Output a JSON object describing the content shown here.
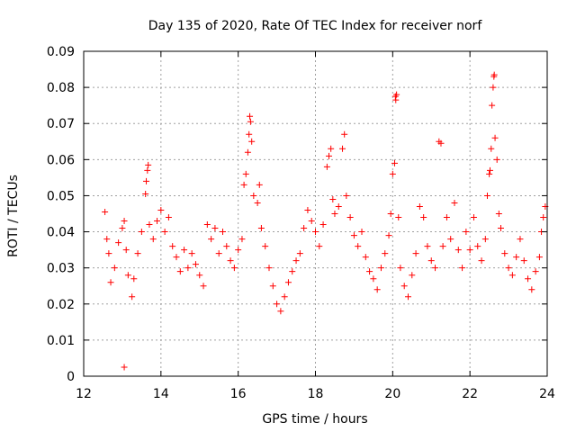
{
  "chart_data": {
    "type": "scatter",
    "title": "Day 135 of 2020, Rate Of TEC Index for receiver norf",
    "xlabel": "GPS time / hours",
    "ylabel": "ROTI / TECUs",
    "xlim": [
      12,
      24
    ],
    "ylim": [
      0,
      0.09
    ],
    "x_ticks": [
      "12",
      "14",
      "16",
      "18",
      "20",
      "22",
      "24"
    ],
    "y_ticks": [
      "0",
      "0.01",
      "0.02",
      "0.03",
      "0.04",
      "0.05",
      "0.06",
      "0.07",
      "0.08",
      "0.09"
    ],
    "grid": true,
    "marker": "plus",
    "color": "#ff0000",
    "series": [
      {
        "points": [
          [
            12.55,
            0.0455
          ],
          [
            12.6,
            0.038
          ],
          [
            12.65,
            0.034
          ],
          [
            12.7,
            0.026
          ],
          [
            12.8,
            0.03
          ],
          [
            12.9,
            0.037
          ],
          [
            13.0,
            0.041
          ],
          [
            13.05,
            0.043
          ],
          [
            13.1,
            0.035
          ],
          [
            13.15,
            0.028
          ],
          [
            13.05,
            0.0025
          ],
          [
            13.25,
            0.022
          ],
          [
            13.3,
            0.027
          ],
          [
            13.4,
            0.034
          ],
          [
            13.5,
            0.04
          ],
          [
            13.6,
            0.0505
          ],
          [
            13.62,
            0.054
          ],
          [
            13.65,
            0.057
          ],
          [
            13.67,
            0.0585
          ],
          [
            13.7,
            0.042
          ],
          [
            13.8,
            0.038
          ],
          [
            13.9,
            0.043
          ],
          [
            14.0,
            0.046
          ],
          [
            14.1,
            0.04
          ],
          [
            14.2,
            0.044
          ],
          [
            14.3,
            0.036
          ],
          [
            14.4,
            0.033
          ],
          [
            14.5,
            0.029
          ],
          [
            14.6,
            0.035
          ],
          [
            14.7,
            0.03
          ],
          [
            14.8,
            0.034
          ],
          [
            14.9,
            0.031
          ],
          [
            15.0,
            0.028
          ],
          [
            15.1,
            0.025
          ],
          [
            15.2,
            0.042
          ],
          [
            15.3,
            0.038
          ],
          [
            15.4,
            0.041
          ],
          [
            15.5,
            0.034
          ],
          [
            15.6,
            0.04
          ],
          [
            15.7,
            0.036
          ],
          [
            15.8,
            0.032
          ],
          [
            15.9,
            0.03
          ],
          [
            16.0,
            0.035
          ],
          [
            16.1,
            0.038
          ],
          [
            16.15,
            0.053
          ],
          [
            16.2,
            0.056
          ],
          [
            16.25,
            0.062
          ],
          [
            16.28,
            0.067
          ],
          [
            16.3,
            0.072
          ],
          [
            16.32,
            0.0705
          ],
          [
            16.35,
            0.065
          ],
          [
            16.4,
            0.05
          ],
          [
            16.5,
            0.048
          ],
          [
            16.55,
            0.053
          ],
          [
            16.6,
            0.041
          ],
          [
            16.7,
            0.036
          ],
          [
            16.8,
            0.03
          ],
          [
            16.9,
            0.025
          ],
          [
            17.0,
            0.02
          ],
          [
            17.1,
            0.018
          ],
          [
            17.2,
            0.022
          ],
          [
            17.3,
            0.026
          ],
          [
            17.4,
            0.029
          ],
          [
            17.5,
            0.032
          ],
          [
            17.6,
            0.034
          ],
          [
            17.7,
            0.041
          ],
          [
            17.8,
            0.046
          ],
          [
            17.9,
            0.043
          ],
          [
            18.0,
            0.04
          ],
          [
            18.1,
            0.036
          ],
          [
            18.2,
            0.042
          ],
          [
            18.3,
            0.058
          ],
          [
            18.35,
            0.061
          ],
          [
            18.4,
            0.063
          ],
          [
            18.45,
            0.049
          ],
          [
            18.5,
            0.045
          ],
          [
            18.6,
            0.047
          ],
          [
            18.7,
            0.063
          ],
          [
            18.75,
            0.067
          ],
          [
            18.8,
            0.05
          ],
          [
            18.9,
            0.044
          ],
          [
            19.0,
            0.039
          ],
          [
            19.1,
            0.036
          ],
          [
            19.2,
            0.04
          ],
          [
            19.3,
            0.033
          ],
          [
            19.4,
            0.029
          ],
          [
            19.5,
            0.027
          ],
          [
            19.6,
            0.024
          ],
          [
            19.7,
            0.03
          ],
          [
            19.8,
            0.034
          ],
          [
            19.9,
            0.039
          ],
          [
            19.95,
            0.045
          ],
          [
            20.0,
            0.056
          ],
          [
            20.05,
            0.059
          ],
          [
            20.07,
            0.0775
          ],
          [
            20.08,
            0.0765
          ],
          [
            20.1,
            0.078
          ],
          [
            20.15,
            0.044
          ],
          [
            20.2,
            0.03
          ],
          [
            20.3,
            0.025
          ],
          [
            20.4,
            0.022
          ],
          [
            20.5,
            0.028
          ],
          [
            20.6,
            0.034
          ],
          [
            20.7,
            0.047
          ],
          [
            20.8,
            0.044
          ],
          [
            20.9,
            0.036
          ],
          [
            21.0,
            0.032
          ],
          [
            21.1,
            0.03
          ],
          [
            21.2,
            0.065
          ],
          [
            21.25,
            0.0645
          ],
          [
            21.3,
            0.036
          ],
          [
            21.4,
            0.044
          ],
          [
            21.5,
            0.038
          ],
          [
            21.6,
            0.048
          ],
          [
            21.7,
            0.035
          ],
          [
            21.8,
            0.03
          ],
          [
            21.9,
            0.04
          ],
          [
            22.0,
            0.035
          ],
          [
            22.1,
            0.044
          ],
          [
            22.2,
            0.036
          ],
          [
            22.3,
            0.032
          ],
          [
            22.4,
            0.038
          ],
          [
            22.45,
            0.05
          ],
          [
            22.5,
            0.056
          ],
          [
            22.52,
            0.057
          ],
          [
            22.55,
            0.063
          ],
          [
            22.57,
            0.075
          ],
          [
            22.6,
            0.08
          ],
          [
            22.62,
            0.083
          ],
          [
            22.63,
            0.0835
          ],
          [
            22.65,
            0.066
          ],
          [
            22.7,
            0.06
          ],
          [
            22.75,
            0.045
          ],
          [
            22.8,
            0.041
          ],
          [
            22.9,
            0.034
          ],
          [
            23.0,
            0.03
          ],
          [
            23.1,
            0.028
          ],
          [
            23.2,
            0.033
          ],
          [
            23.3,
            0.038
          ],
          [
            23.4,
            0.032
          ],
          [
            23.5,
            0.027
          ],
          [
            23.6,
            0.024
          ],
          [
            23.7,
            0.029
          ],
          [
            23.8,
            0.033
          ],
          [
            23.85,
            0.04
          ],
          [
            23.9,
            0.044
          ],
          [
            23.95,
            0.047
          ]
        ]
      }
    ]
  }
}
